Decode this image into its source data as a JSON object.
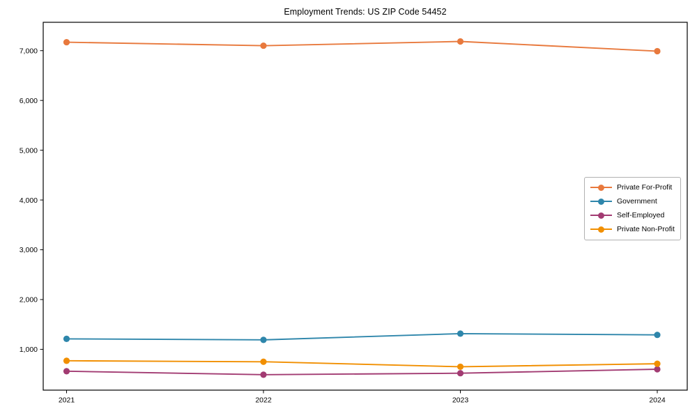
{
  "chart_data": {
    "type": "line",
    "title": "Employment Trends: US ZIP Code 54452",
    "categories": [
      "2021",
      "2022",
      "2023",
      "2024"
    ],
    "series": [
      {
        "name": "Private For-Profit",
        "color": "#E8793D",
        "values": [
          7170,
          7100,
          7185,
          6990
        ]
      },
      {
        "name": "Government",
        "color": "#2E86AB",
        "values": [
          1210,
          1190,
          1315,
          1290
        ]
      },
      {
        "name": "Self-Employed",
        "color": "#A23B72",
        "values": [
          560,
          490,
          520,
          600
        ]
      },
      {
        "name": "Private Non-Profit",
        "color": "#F18F01",
        "values": [
          770,
          750,
          650,
          710
        ]
      }
    ],
    "xlabel": "",
    "ylabel": "",
    "ylim": [
      180,
      7570
    ],
    "yticks": [
      1000,
      2000,
      3000,
      4000,
      5000,
      6000,
      7000
    ],
    "ytick_labels": [
      "1,000",
      "2,000",
      "3,000",
      "4,000",
      "5,000",
      "6,000",
      "7,000"
    ],
    "grid": false,
    "legend_position": "center-right",
    "marker": "circle"
  }
}
